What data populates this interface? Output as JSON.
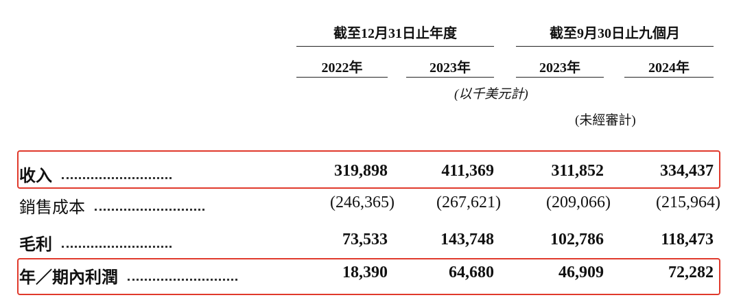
{
  "header": {
    "groups": [
      "截至12月31日止年度",
      "截至9月30日止九個月"
    ],
    "years": [
      "2022年",
      "2023年",
      "2023年",
      "2024年"
    ],
    "unit_note": "(以千美元計)",
    "audit_note": "(未經審計)"
  },
  "table": {
    "rows": [
      [
        "收入",
        "319,898",
        "411,369",
        "311,852",
        "334,437"
      ],
      [
        "銷售成本",
        "(246,365)",
        "(267,621)",
        "(209,066)",
        "(215,964)"
      ],
      [
        "毛利",
        "73,533",
        "143,748",
        "102,786",
        "118,473"
      ],
      [
        "年／期內利潤",
        "18,390",
        "64,680",
        "46,909",
        "72,282"
      ]
    ]
  }
}
